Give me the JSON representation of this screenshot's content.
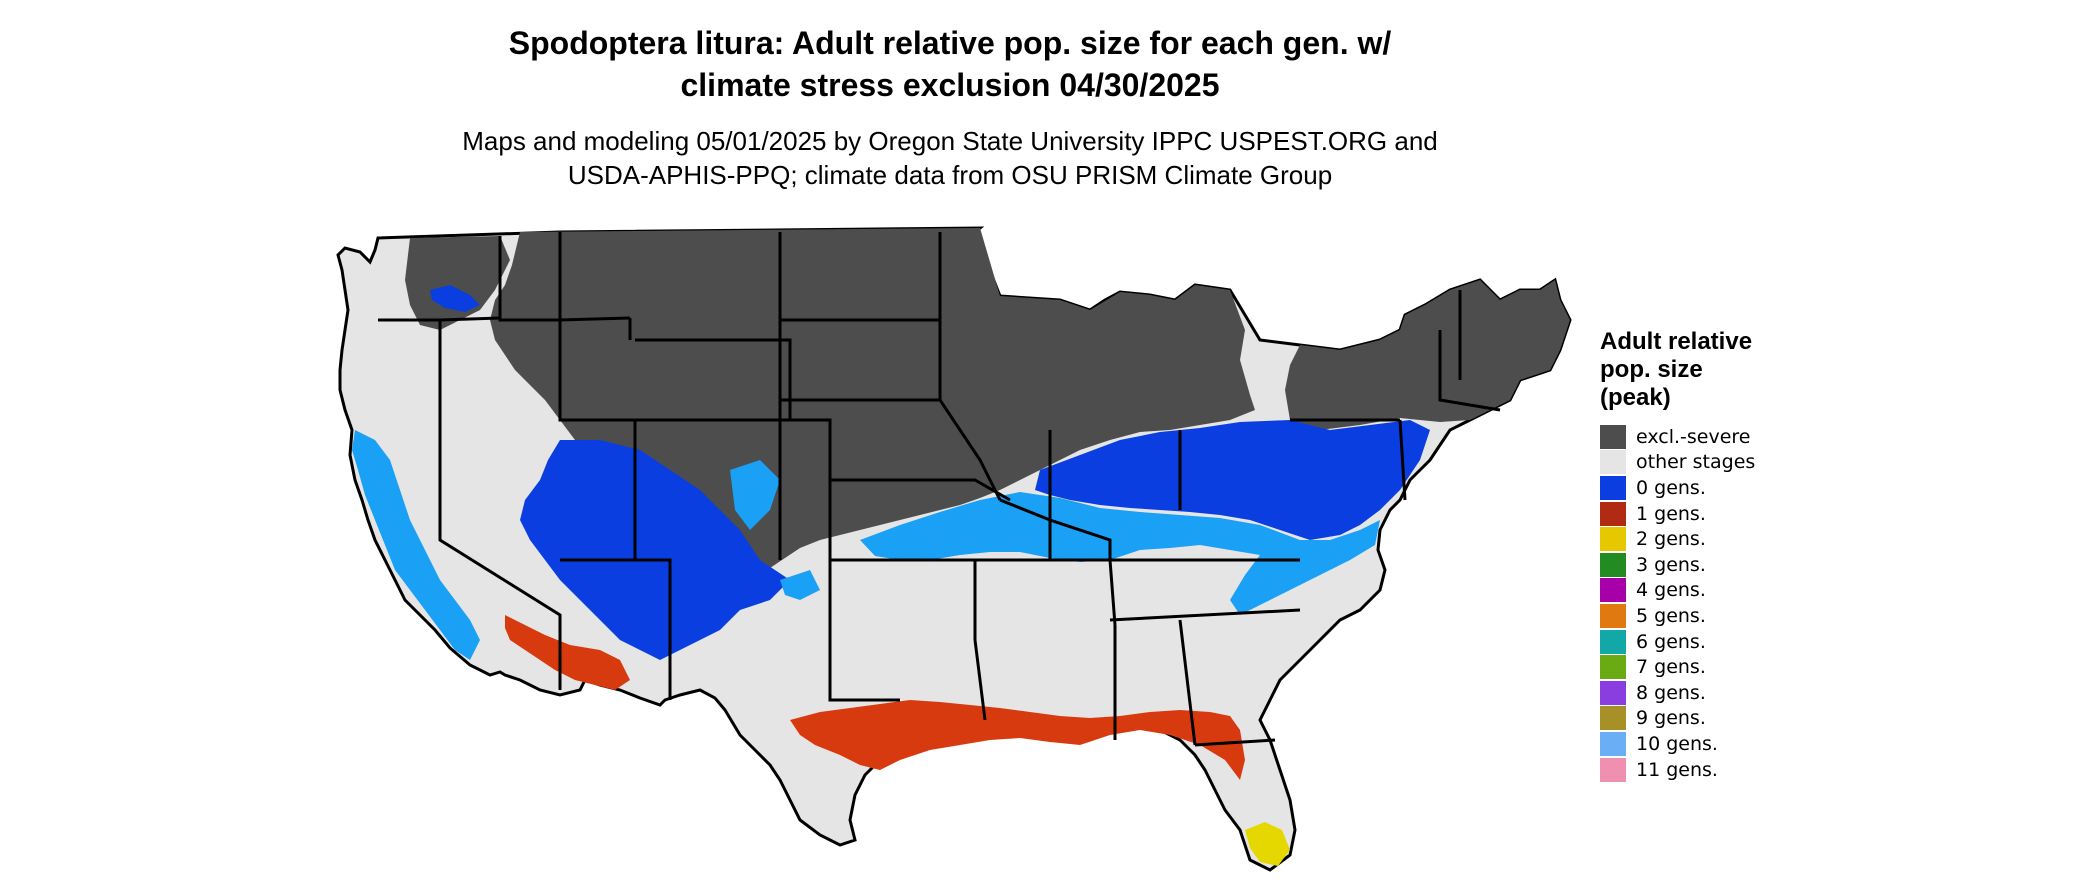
{
  "title_line1": "Spodoptera litura: Adult relative pop. size for each gen. w/",
  "title_line2": "climate stress exclusion 04/30/2025",
  "subtitle_line1": "Maps and modeling 05/01/2025 by Oregon State University IPPC USPEST.ORG and",
  "subtitle_line2": "USDA-APHIS-PPQ; climate data from OSU PRISM Climate Group",
  "legend": {
    "title_line1": "Adult relative",
    "title_line2": "pop. size",
    "title_line3": "(peak)",
    "items": [
      {
        "label": "excl.-severe",
        "color": "#4d4d4d"
      },
      {
        "label": "other stages",
        "color": "#e5e5e5"
      },
      {
        "label": "0 gens.",
        "color": "#0a3ee0"
      },
      {
        "label": "1 gens.",
        "color": "#b02a14"
      },
      {
        "label": "2 gens.",
        "color": "#e5c800"
      },
      {
        "label": "3 gens.",
        "color": "#228b22"
      },
      {
        "label": "4 gens.",
        "color": "#a800a8"
      },
      {
        "label": "5 gens.",
        "color": "#e07a10"
      },
      {
        "label": "6 gens.",
        "color": "#13a8a8"
      },
      {
        "label": "7 gens.",
        "color": "#6aab14"
      },
      {
        "label": "8 gens.",
        "color": "#8a3ee0"
      },
      {
        "label": "9 gens.",
        "color": "#a89028"
      },
      {
        "label": "10 gens.",
        "color": "#6aaef5"
      },
      {
        "label": "11 gens.",
        "color": "#f090b0"
      }
    ]
  },
  "map_colors": {
    "excluded": "#4d4d4d",
    "other": "#e5e5e5",
    "blue_dark": "#0a3ee0",
    "blue_light": "#1aa0f5",
    "red": "#d83a10",
    "yellow": "#e5d800",
    "border": "#000000"
  }
}
